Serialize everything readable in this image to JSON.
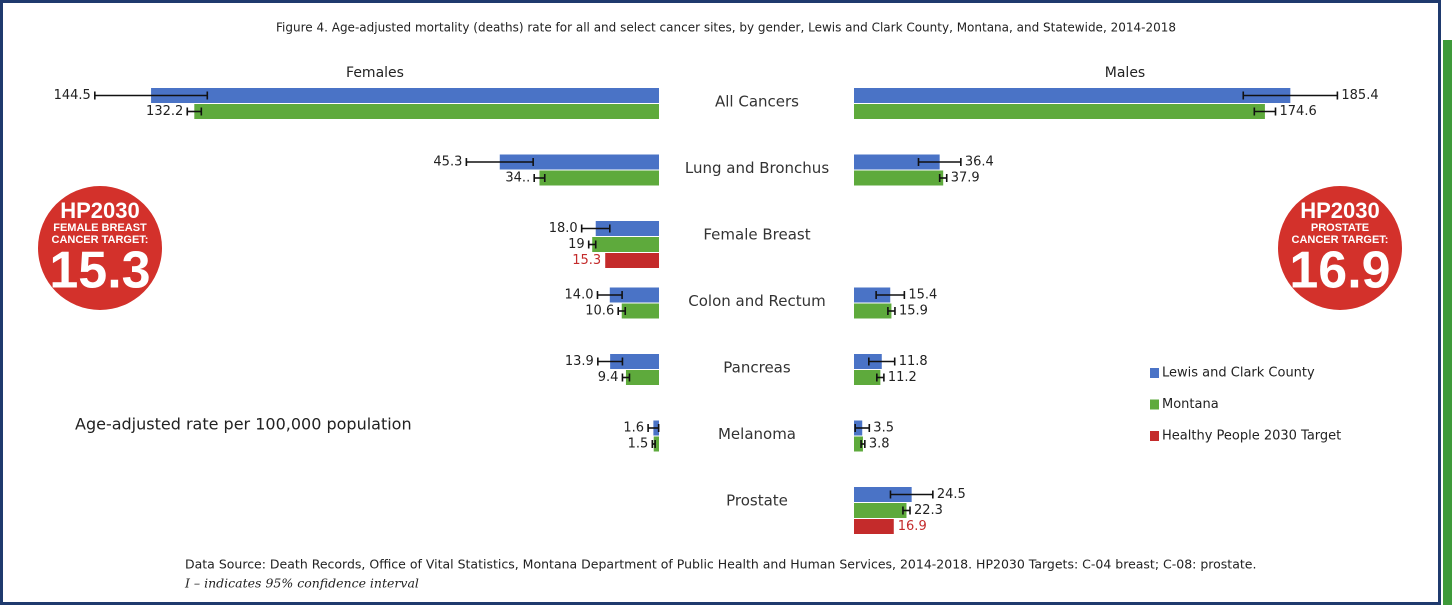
{
  "chart_data": {
    "type": "butterfly-bar",
    "title": "Figure 4. Age-adjusted mortality (deaths) rate for all and select cancer sites, by gender, Lewis and Clark County, Montana, and Statewide, 2014-2018",
    "xlabel": "Age-adjusted rate per 100,000 population",
    "categories": [
      "All Cancers",
      "Lung and Bronchus",
      "Female Breast",
      "Colon and Rectum",
      "Pancreas",
      "Melanoma",
      "Prostate"
    ],
    "series": [
      {
        "name": "Lewis and Clark County",
        "color": "#4a73c6"
      },
      {
        "name": "Montana",
        "color": "#5eaa3c"
      },
      {
        "name": "Healthy People 2030 Target",
        "color": "#c42b2b"
      }
    ],
    "legend": "right",
    "panels": [
      {
        "title": "Females",
        "direction": "left",
        "xlim": [
          0,
          165
        ],
        "series": [
          {
            "values": [
              144.5,
              45.3,
              18.0,
              14.0,
              13.9,
              1.6,
              null
            ],
            "errors": [
              16,
              9.5,
              4,
              3.5,
              3.5,
              1.5,
              null
            ],
            "value_labels": [
              "144.5",
              "45.3",
              "18.0",
              "14.0",
              "13.9",
              "1.6",
              null
            ]
          },
          {
            "values": [
              132.2,
              34,
              19,
              10.6,
              9.4,
              1.5,
              null
            ],
            "errors": [
              2,
              1.5,
              1,
              1,
              1,
              0.4,
              null
            ],
            "value_labels": [
              "132.2",
              "34..",
              "19",
              "10.6",
              "9.4",
              "1.5",
              null
            ]
          },
          {
            "values": [
              null,
              null,
              15.3,
              null,
              null,
              null,
              null
            ]
          }
        ]
      },
      {
        "title": "Males",
        "direction": "right",
        "xlim": [
          0,
          232
        ],
        "series": [
          {
            "values": [
              185.4,
              36.4,
              null,
              15.4,
              11.8,
              3.5,
              24.5
            ],
            "errors": [
              20,
              9,
              null,
              6,
              5.5,
              3,
              9
            ]
          },
          {
            "values": [
              174.6,
              37.9,
              null,
              15.9,
              11.2,
              3.8,
              22.3
            ],
            "errors": [
              4.5,
              1.5,
              null,
              1.5,
              1.5,
              0.8,
              1.5
            ]
          },
          {
            "values": [
              null,
              null,
              null,
              null,
              null,
              null,
              16.9
            ]
          }
        ]
      }
    ],
    "annotations": [
      {
        "lines": [
          "HP2030",
          "FEMALE BREAST",
          "CANCER TARGET:",
          "15.3"
        ]
      },
      {
        "lines": [
          "HP2030",
          "PROSTATE",
          "CANCER TARGET:",
          "16.9"
        ]
      }
    ],
    "footnotes": [
      "Data Source: Death Records, Office of Vital Statistics, Montana Department of Public Health and Human Services, 2014-2018. HP2030 Targets: C-04 breast; C-08: prostate.",
      "I – indicates 95% confidence interval"
    ]
  }
}
